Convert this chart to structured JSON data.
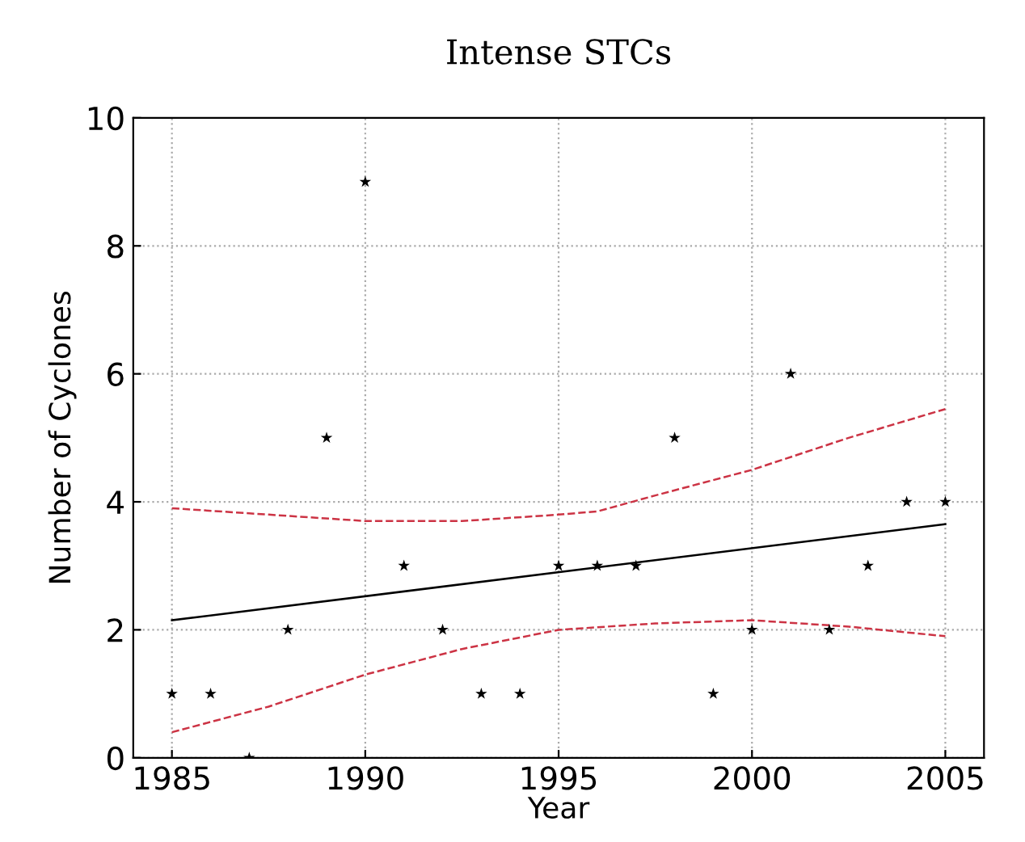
{
  "chart_data": {
    "type": "scatter",
    "title": "Intense STCs",
    "xlabel": "Year",
    "ylabel": "Number of Cyclones",
    "xlim": [
      1984,
      2006
    ],
    "xticks": [
      1985,
      1990,
      1995,
      2000,
      2005
    ],
    "ylim": [
      0,
      10
    ],
    "yticks": [
      0,
      2,
      4,
      6,
      8,
      10
    ],
    "grid": true,
    "legend": false,
    "series": [
      {
        "marker": "star",
        "color": "#000000",
        "x": [
          1985,
          1986,
          1987,
          1988,
          1989,
          1990,
          1991,
          1992,
          1993,
          1994,
          1995,
          1996,
          1997,
          1998,
          1999,
          2000,
          2001,
          2002,
          2003,
          2004,
          2005
        ],
        "values": [
          1,
          1,
          0,
          2,
          5,
          9,
          3,
          2,
          1,
          1,
          3,
          3,
          3,
          5,
          1,
          2,
          6,
          2,
          3,
          4,
          4
        ]
      },
      {
        "type": "line",
        "line_style": "solid",
        "color": "#000000",
        "x": [
          1985,
          2005
        ],
        "values": [
          2.15,
          3.65
        ]
      },
      {
        "type": "line",
        "line_style": "dashed",
        "color": "#cc3344",
        "x": [
          1985,
          1987.5,
          1990,
          1992.5,
          1995,
          1996,
          1997.5,
          2000,
          2002.5,
          2005
        ],
        "values": [
          3.9,
          3.8,
          3.7,
          3.7,
          3.8,
          3.85,
          4.1,
          4.5,
          5.0,
          5.45
        ]
      },
      {
        "type": "line",
        "line_style": "dashed",
        "color": "#cc3344",
        "x": [
          1985,
          1987.5,
          1990,
          1992.5,
          1995,
          1997.5,
          2000,
          2002.5,
          2005
        ],
        "values": [
          0.4,
          0.8,
          1.3,
          1.7,
          2.0,
          2.1,
          2.15,
          2.05,
          1.9
        ]
      }
    ]
  }
}
